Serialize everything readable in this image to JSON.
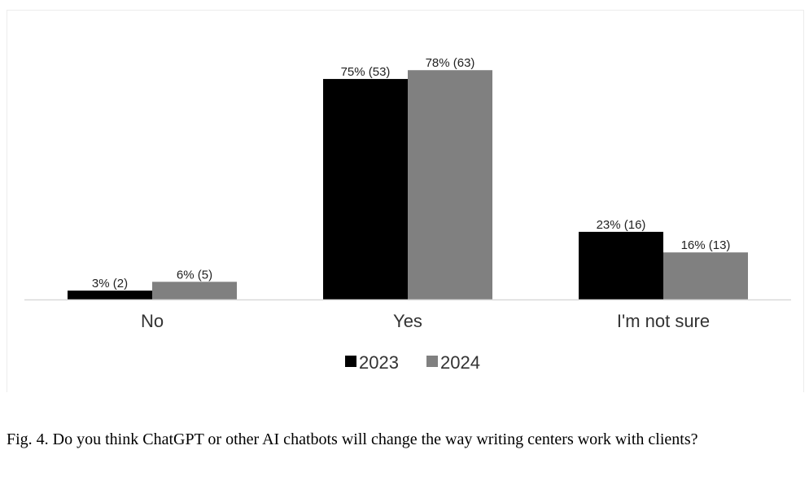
{
  "chart_data": {
    "type": "bar",
    "categories": [
      "No",
      "Yes",
      "I'm not sure"
    ],
    "series": [
      {
        "name": "2023",
        "color": "#000000",
        "values": [
          3,
          75,
          23
        ],
        "labels": [
          "3% (2)",
          "75% (53)",
          "23% (16)"
        ]
      },
      {
        "name": "2024",
        "color": "#808080",
        "values": [
          6,
          78,
          16
        ],
        "labels": [
          "6% (5)",
          "78% (63)",
          "16% (13)"
        ]
      }
    ],
    "ylim": [
      0,
      80
    ],
    "grid": false,
    "legend_position": "bottom"
  },
  "caption": "Fig. 4. Do you think ChatGPT or other AI chatbots will change the way writing centers work with clients?"
}
